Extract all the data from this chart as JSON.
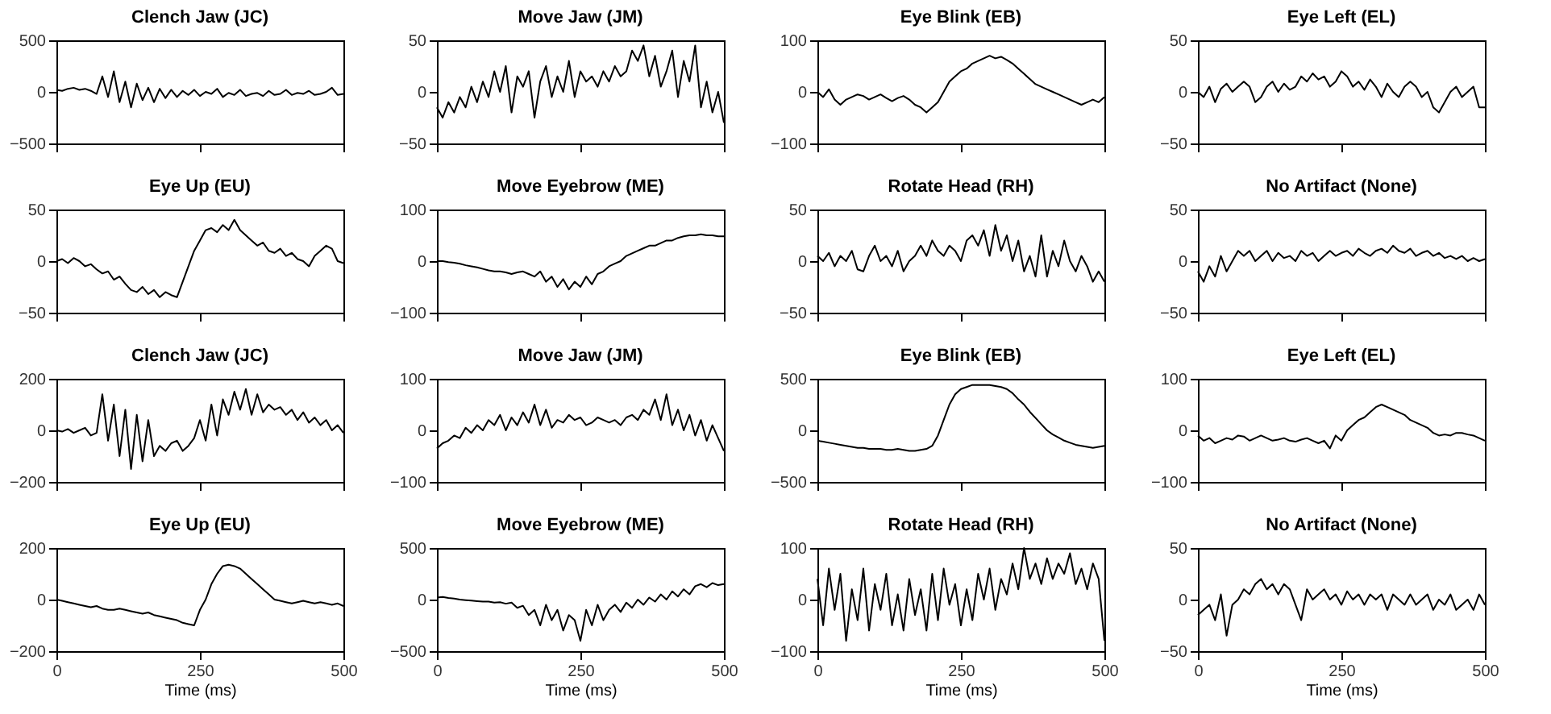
{
  "chart_data": [
    {
      "type": "line",
      "title": "Clench Jaw (JC)",
      "x": [
        0,
        10,
        20,
        30,
        40,
        50,
        60,
        70,
        80,
        90,
        100,
        110,
        120,
        130,
        140,
        150,
        160,
        170,
        180,
        190,
        200,
        210,
        220,
        230,
        240,
        250,
        260,
        270,
        280,
        290,
        300,
        310,
        320,
        330,
        340,
        350,
        360,
        370,
        380,
        390,
        400,
        410,
        420,
        430,
        440,
        450,
        460,
        470,
        480,
        490,
        500
      ],
      "series": [
        {
          "color": "#000000",
          "values": [
            20,
            10,
            30,
            40,
            20,
            30,
            10,
            -20,
            150,
            -50,
            200,
            -100,
            100,
            -150,
            80,
            -80,
            40,
            -100,
            30,
            -60,
            20,
            -50,
            10,
            -30,
            20,
            -40,
            0,
            -20,
            30,
            -50,
            -10,
            -30,
            20,
            -40,
            -20,
            -10,
            -40,
            10,
            -30,
            -20,
            20,
            -30,
            -10,
            -20,
            10,
            -30,
            -20,
            0,
            40,
            -30,
            -20
          ]
        }
      ],
      "xlim": [
        0,
        500
      ],
      "xticks": [
        0,
        250,
        500
      ],
      "ylim": [
        -500,
        500
      ],
      "yticks": [
        -500,
        0,
        500
      ],
      "tick_labels": "y"
    },
    {
      "type": "line",
      "title": "Move Jaw (JM)",
      "x": [
        0,
        10,
        20,
        30,
        40,
        50,
        60,
        70,
        80,
        90,
        100,
        110,
        120,
        130,
        140,
        150,
        160,
        170,
        180,
        190,
        200,
        210,
        220,
        230,
        240,
        250,
        260,
        270,
        280,
        290,
        300,
        310,
        320,
        330,
        340,
        350,
        360,
        370,
        380,
        390,
        400,
        410,
        420,
        430,
        440,
        450,
        460,
        470,
        480,
        490,
        500
      ],
      "series": [
        {
          "color": "#000000",
          "values": [
            -15,
            -25,
            -10,
            -20,
            -5,
            -15,
            5,
            -10,
            10,
            -5,
            20,
            0,
            25,
            -20,
            15,
            5,
            20,
            -25,
            10,
            25,
            -5,
            15,
            0,
            30,
            -5,
            20,
            10,
            15,
            5,
            20,
            10,
            25,
            15,
            20,
            40,
            30,
            45,
            15,
            35,
            5,
            20,
            40,
            -5,
            30,
            10,
            45,
            -15,
            10,
            -20,
            0,
            -30
          ]
        }
      ],
      "xlim": [
        0,
        500
      ],
      "xticks": [
        0,
        250,
        500
      ],
      "ylim": [
        -50,
        50
      ],
      "yticks": [
        -50,
        0,
        50
      ],
      "tick_labels": "y"
    },
    {
      "type": "line",
      "title": "Eye Blink (EB)",
      "x": [
        0,
        10,
        20,
        30,
        40,
        50,
        60,
        70,
        80,
        90,
        100,
        110,
        120,
        130,
        140,
        150,
        160,
        170,
        180,
        190,
        200,
        210,
        220,
        230,
        240,
        250,
        260,
        270,
        280,
        290,
        300,
        310,
        320,
        330,
        340,
        350,
        360,
        370,
        380,
        390,
        400,
        410,
        420,
        430,
        440,
        450,
        460,
        470,
        480,
        490,
        500
      ],
      "series": [
        {
          "color": "#000000",
          "values": [
            0,
            -10,
            5,
            -15,
            -25,
            -15,
            -10,
            -5,
            -8,
            -15,
            -10,
            -5,
            -12,
            -18,
            -12,
            -8,
            -15,
            -25,
            -30,
            -40,
            -30,
            -20,
            0,
            20,
            30,
            40,
            45,
            55,
            60,
            65,
            70,
            65,
            68,
            62,
            55,
            45,
            35,
            25,
            15,
            10,
            5,
            0,
            -5,
            -10,
            -15,
            -20,
            -25,
            -20,
            -15,
            -20,
            -10
          ]
        }
      ],
      "xlim": [
        0,
        500
      ],
      "xticks": [
        0,
        250,
        500
      ],
      "ylim": [
        -100,
        100
      ],
      "yticks": [
        -100,
        0,
        100
      ],
      "tick_labels": "y"
    },
    {
      "type": "line",
      "title": "Eye Left (EL)",
      "x": [
        0,
        10,
        20,
        30,
        40,
        50,
        60,
        70,
        80,
        90,
        100,
        110,
        120,
        130,
        140,
        150,
        160,
        170,
        180,
        190,
        200,
        210,
        220,
        230,
        240,
        250,
        260,
        270,
        280,
        290,
        300,
        310,
        320,
        330,
        340,
        350,
        360,
        370,
        380,
        390,
        400,
        410,
        420,
        430,
        440,
        450,
        460,
        470,
        480,
        490,
        500
      ],
      "series": [
        {
          "color": "#000000",
          "values": [
            0,
            -5,
            5,
            -10,
            3,
            8,
            0,
            5,
            10,
            5,
            -10,
            -5,
            5,
            10,
            0,
            8,
            2,
            5,
            15,
            10,
            18,
            12,
            15,
            5,
            10,
            20,
            15,
            5,
            10,
            2,
            12,
            5,
            -5,
            8,
            0,
            -5,
            5,
            10,
            5,
            -5,
            0,
            -15,
            -20,
            -10,
            0,
            5,
            -5,
            0,
            5,
            -15,
            -15
          ]
        }
      ],
      "xlim": [
        0,
        500
      ],
      "xticks": [
        0,
        250,
        500
      ],
      "ylim": [
        -50,
        50
      ],
      "yticks": [
        -50,
        0,
        50
      ],
      "tick_labels": "y"
    },
    {
      "type": "line",
      "title": "Eye Up (EU)",
      "x": [
        0,
        10,
        20,
        30,
        40,
        50,
        60,
        70,
        80,
        90,
        100,
        110,
        120,
        130,
        140,
        150,
        160,
        170,
        180,
        190,
        200,
        210,
        220,
        230,
        240,
        250,
        260,
        270,
        280,
        290,
        300,
        310,
        320,
        330,
        340,
        350,
        360,
        370,
        380,
        390,
        400,
        410,
        420,
        430,
        440,
        450,
        460,
        470,
        480,
        490,
        500
      ],
      "series": [
        {
          "color": "#000000",
          "values": [
            0,
            2,
            -2,
            3,
            0,
            -5,
            -3,
            -8,
            -12,
            -10,
            -18,
            -15,
            -22,
            -28,
            -30,
            -25,
            -32,
            -28,
            -35,
            -30,
            -33,
            -35,
            -20,
            -5,
            10,
            20,
            30,
            32,
            28,
            35,
            30,
            40,
            30,
            25,
            20,
            15,
            18,
            10,
            8,
            12,
            5,
            8,
            2,
            0,
            -5,
            5,
            10,
            15,
            12,
            0,
            -2
          ]
        }
      ],
      "xlim": [
        0,
        500
      ],
      "xticks": [
        0,
        250,
        500
      ],
      "ylim": [
        -50,
        50
      ],
      "yticks": [
        -50,
        0,
        50
      ],
      "tick_labels": "y"
    },
    {
      "type": "line",
      "title": "Move Eyebrow (ME)",
      "x": [
        0,
        10,
        20,
        30,
        40,
        50,
        60,
        70,
        80,
        90,
        100,
        110,
        120,
        130,
        140,
        150,
        160,
        170,
        180,
        190,
        200,
        210,
        220,
        230,
        240,
        250,
        260,
        270,
        280,
        290,
        300,
        310,
        320,
        330,
        340,
        350,
        360,
        370,
        380,
        390,
        400,
        410,
        420,
        430,
        440,
        450,
        460,
        470,
        480,
        490,
        500
      ],
      "series": [
        {
          "color": "#000000",
          "values": [
            0,
            0,
            -2,
            -3,
            -5,
            -8,
            -10,
            -12,
            -15,
            -18,
            -20,
            -20,
            -22,
            -25,
            -22,
            -20,
            -25,
            -30,
            -20,
            -40,
            -30,
            -50,
            -35,
            -55,
            -40,
            -50,
            -30,
            -45,
            -25,
            -20,
            -10,
            -5,
            0,
            10,
            15,
            20,
            25,
            30,
            30,
            35,
            40,
            40,
            45,
            48,
            50,
            50,
            52,
            50,
            50,
            48,
            48
          ]
        }
      ],
      "xlim": [
        0,
        500
      ],
      "xticks": [
        0,
        250,
        500
      ],
      "ylim": [
        -100,
        100
      ],
      "yticks": [
        -100,
        0,
        100
      ],
      "tick_labels": "y"
    },
    {
      "type": "line",
      "title": "Rotate Head (RH)",
      "x": [
        0,
        10,
        20,
        30,
        40,
        50,
        60,
        70,
        80,
        90,
        100,
        110,
        120,
        130,
        140,
        150,
        160,
        170,
        180,
        190,
        200,
        210,
        220,
        230,
        240,
        250,
        260,
        270,
        280,
        290,
        300,
        310,
        320,
        330,
        340,
        350,
        360,
        370,
        380,
        390,
        400,
        410,
        420,
        430,
        440,
        450,
        460,
        470,
        480,
        490,
        500
      ],
      "series": [
        {
          "color": "#000000",
          "values": [
            5,
            0,
            8,
            -5,
            5,
            0,
            10,
            -8,
            -10,
            5,
            15,
            0,
            5,
            -5,
            10,
            -10,
            0,
            5,
            15,
            5,
            20,
            10,
            5,
            15,
            10,
            0,
            20,
            25,
            15,
            30,
            5,
            35,
            10,
            25,
            0,
            20,
            -10,
            5,
            -15,
            25,
            -15,
            10,
            -5,
            20,
            0,
            -10,
            5,
            -5,
            -20,
            -10,
            -20
          ]
        }
      ],
      "xlim": [
        0,
        500
      ],
      "xticks": [
        0,
        250,
        500
      ],
      "ylim": [
        -50,
        50
      ],
      "yticks": [
        -50,
        0,
        50
      ],
      "tick_labels": "y"
    },
    {
      "type": "line",
      "title": "No Artifact (None)",
      "x": [
        0,
        10,
        20,
        30,
        40,
        50,
        60,
        70,
        80,
        90,
        100,
        110,
        120,
        130,
        140,
        150,
        160,
        170,
        180,
        190,
        200,
        210,
        220,
        230,
        240,
        250,
        260,
        270,
        280,
        290,
        300,
        310,
        320,
        330,
        340,
        350,
        360,
        370,
        380,
        390,
        400,
        410,
        420,
        430,
        440,
        450,
        460,
        470,
        480,
        490,
        500
      ],
      "series": [
        {
          "color": "#000000",
          "values": [
            -10,
            -20,
            -5,
            -15,
            5,
            -10,
            0,
            10,
            5,
            10,
            0,
            5,
            10,
            0,
            8,
            3,
            5,
            0,
            10,
            5,
            8,
            0,
            5,
            10,
            5,
            8,
            10,
            5,
            12,
            8,
            5,
            10,
            12,
            8,
            15,
            10,
            8,
            12,
            5,
            8,
            10,
            5,
            8,
            3,
            5,
            2,
            5,
            0,
            3,
            0,
            2
          ]
        }
      ],
      "xlim": [
        0,
        500
      ],
      "xticks": [
        0,
        250,
        500
      ],
      "ylim": [
        -50,
        50
      ],
      "yticks": [
        -50,
        0,
        50
      ],
      "tick_labels": "y"
    },
    {
      "type": "line",
      "title": "Clench Jaw (JC)",
      "x": [
        0,
        10,
        20,
        30,
        40,
        50,
        60,
        70,
        80,
        90,
        100,
        110,
        120,
        130,
        140,
        150,
        160,
        170,
        180,
        190,
        200,
        210,
        220,
        230,
        240,
        250,
        260,
        270,
        280,
        290,
        300,
        310,
        320,
        330,
        340,
        350,
        360,
        370,
        380,
        390,
        400,
        410,
        420,
        430,
        440,
        450,
        460,
        470,
        480,
        490,
        500
      ],
      "series": [
        {
          "color": "#000000",
          "values": [
            0,
            -5,
            5,
            -10,
            0,
            10,
            -20,
            -10,
            140,
            -40,
            100,
            -100,
            80,
            -150,
            60,
            -120,
            40,
            -100,
            -60,
            -80,
            -50,
            -40,
            -80,
            -60,
            -30,
            40,
            -40,
            100,
            -20,
            120,
            60,
            150,
            80,
            160,
            60,
            140,
            70,
            100,
            80,
            90,
            60,
            80,
            40,
            70,
            30,
            50,
            20,
            40,
            0,
            20,
            -10
          ]
        }
      ],
      "xlim": [
        0,
        500
      ],
      "xticks": [
        0,
        250,
        500
      ],
      "ylim": [
        -200,
        200
      ],
      "yticks": [
        -200,
        0,
        200
      ],
      "tick_labels": "y"
    },
    {
      "type": "line",
      "title": "Move Jaw (JM)",
      "x": [
        0,
        10,
        20,
        30,
        40,
        50,
        60,
        70,
        80,
        90,
        100,
        110,
        120,
        130,
        140,
        150,
        160,
        170,
        180,
        190,
        200,
        210,
        220,
        230,
        240,
        250,
        260,
        270,
        280,
        290,
        300,
        310,
        320,
        330,
        340,
        350,
        360,
        370,
        380,
        390,
        400,
        410,
        420,
        430,
        440,
        450,
        460,
        470,
        480,
        490,
        500
      ],
      "series": [
        {
          "color": "#000000",
          "values": [
            -35,
            -25,
            -20,
            -10,
            -15,
            5,
            -5,
            10,
            0,
            20,
            10,
            30,
            0,
            25,
            10,
            35,
            15,
            50,
            10,
            40,
            5,
            20,
            15,
            30,
            20,
            25,
            10,
            15,
            25,
            20,
            15,
            20,
            10,
            25,
            30,
            20,
            40,
            30,
            60,
            20,
            70,
            10,
            40,
            0,
            30,
            -10,
            20,
            -20,
            10,
            -15,
            -40
          ]
        }
      ],
      "xlim": [
        0,
        500
      ],
      "xticks": [
        0,
        250,
        500
      ],
      "ylim": [
        -100,
        100
      ],
      "yticks": [
        -100,
        0,
        100
      ],
      "tick_labels": "y"
    },
    {
      "type": "line",
      "title": "Eye Blink (EB)",
      "x": [
        0,
        10,
        20,
        30,
        40,
        50,
        60,
        70,
        80,
        90,
        100,
        110,
        120,
        130,
        140,
        150,
        160,
        170,
        180,
        190,
        200,
        210,
        220,
        230,
        240,
        250,
        260,
        270,
        280,
        290,
        300,
        310,
        320,
        330,
        340,
        350,
        360,
        370,
        380,
        390,
        400,
        410,
        420,
        430,
        440,
        450,
        460,
        470,
        480,
        490,
        500
      ],
      "series": [
        {
          "color": "#000000",
          "values": [
            -100,
            -110,
            -120,
            -130,
            -140,
            -150,
            -160,
            -170,
            -170,
            -180,
            -180,
            -180,
            -190,
            -190,
            -180,
            -190,
            -200,
            -200,
            -190,
            -180,
            -150,
            -50,
            100,
            250,
            350,
            400,
            420,
            440,
            440,
            440,
            440,
            430,
            420,
            400,
            360,
            300,
            250,
            180,
            120,
            60,
            0,
            -40,
            -70,
            -100,
            -120,
            -140,
            -150,
            -160,
            -170,
            -160,
            -150
          ]
        }
      ],
      "xlim": [
        0,
        500
      ],
      "xticks": [
        0,
        250,
        500
      ],
      "ylim": [
        -500,
        500
      ],
      "yticks": [
        -500,
        0,
        500
      ],
      "tick_labels": "y"
    },
    {
      "type": "line",
      "title": "Eye Left (EL)",
      "x": [
        0,
        10,
        20,
        30,
        40,
        50,
        60,
        70,
        80,
        90,
        100,
        110,
        120,
        130,
        140,
        150,
        160,
        170,
        180,
        190,
        200,
        210,
        220,
        230,
        240,
        250,
        260,
        270,
        280,
        290,
        300,
        310,
        320,
        330,
        340,
        350,
        360,
        370,
        380,
        390,
        400,
        410,
        420,
        430,
        440,
        450,
        460,
        470,
        480,
        490,
        500
      ],
      "series": [
        {
          "color": "#000000",
          "values": [
            -10,
            -20,
            -15,
            -25,
            -20,
            -15,
            -18,
            -10,
            -12,
            -20,
            -15,
            -10,
            -15,
            -20,
            -18,
            -15,
            -20,
            -22,
            -18,
            -15,
            -20,
            -25,
            -20,
            -35,
            -10,
            -20,
            0,
            10,
            20,
            25,
            35,
            45,
            50,
            45,
            40,
            35,
            30,
            20,
            15,
            10,
            5,
            -5,
            -10,
            -8,
            -10,
            -5,
            -5,
            -8,
            -10,
            -15,
            -20
          ]
        }
      ],
      "xlim": [
        0,
        500
      ],
      "xticks": [
        0,
        250,
        500
      ],
      "ylim": [
        -100,
        100
      ],
      "yticks": [
        -100,
        0,
        100
      ],
      "tick_labels": "y"
    },
    {
      "type": "line",
      "title": "Eye Up (EU)",
      "xlabel": "Time (ms)",
      "x": [
        0,
        10,
        20,
        30,
        40,
        50,
        60,
        70,
        80,
        90,
        100,
        110,
        120,
        130,
        140,
        150,
        160,
        170,
        180,
        190,
        200,
        210,
        220,
        230,
        240,
        250,
        260,
        270,
        280,
        290,
        300,
        310,
        320,
        330,
        340,
        350,
        360,
        370,
        380,
        390,
        400,
        410,
        420,
        430,
        440,
        450,
        460,
        470,
        480,
        490,
        500
      ],
      "series": [
        {
          "color": "#000000",
          "values": [
            0,
            -5,
            -10,
            -15,
            -20,
            -25,
            -30,
            -25,
            -35,
            -40,
            -40,
            -35,
            -40,
            -45,
            -50,
            -55,
            -50,
            -60,
            -65,
            -70,
            -75,
            -80,
            -90,
            -95,
            -100,
            -40,
            0,
            60,
            100,
            130,
            135,
            130,
            120,
            100,
            80,
            60,
            40,
            20,
            0,
            -5,
            -10,
            -15,
            -10,
            -5,
            -10,
            -15,
            -10,
            -15,
            -20,
            -15,
            -25
          ]
        }
      ],
      "xlim": [
        0,
        500
      ],
      "xticks": [
        0,
        250,
        500
      ],
      "ylim": [
        -200,
        200
      ],
      "yticks": [
        -200,
        0,
        200
      ]
    },
    {
      "type": "line",
      "title": "Move Eyebrow (ME)",
      "xlabel": "Time (ms)",
      "x": [
        0,
        10,
        20,
        30,
        40,
        50,
        60,
        70,
        80,
        90,
        100,
        110,
        120,
        130,
        140,
        150,
        160,
        170,
        180,
        190,
        200,
        210,
        220,
        230,
        240,
        250,
        260,
        270,
        280,
        290,
        300,
        310,
        320,
        330,
        340,
        350,
        360,
        370,
        380,
        390,
        400,
        410,
        420,
        430,
        440,
        450,
        460,
        470,
        480,
        490,
        500
      ],
      "series": [
        {
          "color": "#000000",
          "values": [
            20,
            25,
            15,
            10,
            0,
            -5,
            -10,
            -15,
            -20,
            -20,
            -30,
            -25,
            -40,
            -30,
            -80,
            -60,
            -150,
            -100,
            -250,
            -50,
            -200,
            -100,
            -300,
            -150,
            -200,
            -400,
            -100,
            -250,
            -50,
            -200,
            -100,
            -50,
            -120,
            -30,
            -80,
            0,
            -50,
            20,
            -20,
            50,
            0,
            80,
            30,
            100,
            50,
            130,
            150,
            120,
            160,
            140,
            150
          ]
        }
      ],
      "xlim": [
        0,
        500
      ],
      "xticks": [
        0,
        250,
        500
      ],
      "ylim": [
        -500,
        500
      ],
      "yticks": [
        -500,
        0,
        500
      ]
    },
    {
      "type": "line",
      "title": "Rotate Head (RH)",
      "xlabel": "Time (ms)",
      "x": [
        0,
        10,
        20,
        30,
        40,
        50,
        60,
        70,
        80,
        90,
        100,
        110,
        120,
        130,
        140,
        150,
        160,
        170,
        180,
        190,
        200,
        210,
        220,
        230,
        240,
        250,
        260,
        270,
        280,
        290,
        300,
        310,
        320,
        330,
        340,
        350,
        360,
        370,
        380,
        390,
        400,
        410,
        420,
        430,
        440,
        450,
        460,
        470,
        480,
        490,
        500
      ],
      "series": [
        {
          "color": "#000000",
          "values": [
            40,
            -50,
            60,
            -20,
            50,
            -80,
            20,
            -40,
            60,
            -60,
            30,
            -20,
            50,
            -50,
            10,
            -60,
            40,
            -30,
            20,
            -60,
            50,
            -40,
            60,
            -10,
            30,
            -50,
            20,
            -40,
            50,
            0,
            60,
            -20,
            40,
            10,
            70,
            20,
            100,
            40,
            70,
            30,
            80,
            40,
            70,
            50,
            90,
            30,
            60,
            20,
            70,
            40,
            -80
          ]
        }
      ],
      "xlim": [
        0,
        500
      ],
      "xticks": [
        0,
        250,
        500
      ],
      "ylim": [
        -100,
        100
      ],
      "yticks": [
        -100,
        0,
        100
      ]
    },
    {
      "type": "line",
      "title": "No Artifact (None)",
      "xlabel": "Time (ms)",
      "x": [
        0,
        10,
        20,
        30,
        40,
        50,
        60,
        70,
        80,
        90,
        100,
        110,
        120,
        130,
        140,
        150,
        160,
        170,
        180,
        190,
        200,
        210,
        220,
        230,
        240,
        250,
        260,
        270,
        280,
        290,
        300,
        310,
        320,
        330,
        340,
        350,
        360,
        370,
        380,
        390,
        400,
        410,
        420,
        430,
        440,
        450,
        460,
        470,
        480,
        490,
        500
      ],
      "series": [
        {
          "color": "#000000",
          "values": [
            -15,
            -10,
            -5,
            -20,
            5,
            -35,
            -5,
            0,
            10,
            5,
            15,
            20,
            10,
            15,
            5,
            15,
            10,
            -5,
            -20,
            10,
            0,
            5,
            10,
            0,
            5,
            -5,
            8,
            0,
            5,
            -5,
            5,
            0,
            5,
            -10,
            5,
            0,
            -5,
            5,
            -5,
            0,
            5,
            -10,
            0,
            -5,
            5,
            -10,
            -5,
            0,
            -10,
            5,
            -5
          ]
        }
      ],
      "xlim": [
        0,
        500
      ],
      "xticks": [
        0,
        250,
        500
      ],
      "ylim": [
        -50,
        50
      ],
      "yticks": [
        -50,
        0,
        50
      ]
    }
  ]
}
